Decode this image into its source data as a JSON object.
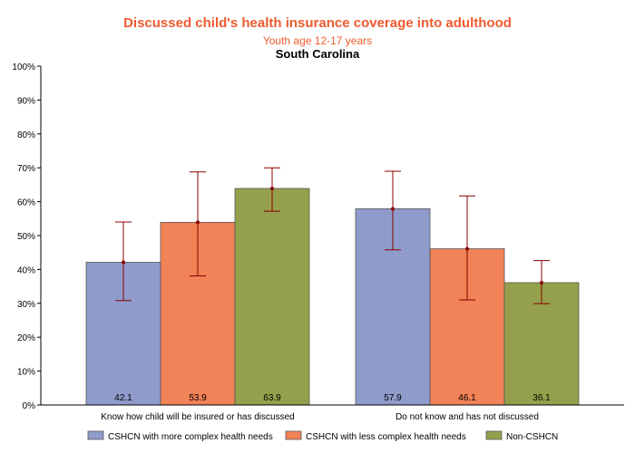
{
  "chart_data": {
    "type": "bar",
    "title": "Discussed child's health insurance coverage into adulthood",
    "subtitle": "Youth age 12-17 years",
    "subtitle2": "South Carolina",
    "categories": [
      "Know how child will be insured or has discussed",
      "Do not know and has not discussed"
    ],
    "series": [
      {
        "name": "CSHCN with more complex health needs",
        "color": "#8f9bcb",
        "values": [
          42.1,
          57.9
        ],
        "ci_low": [
          30.8,
          45.8
        ],
        "ci_high": [
          54.0,
          69.0
        ],
        "labels": [
          "42.1",
          "57.9"
        ]
      },
      {
        "name": "CSHCN with less complex health needs",
        "color": "#f28257",
        "values": [
          53.9,
          46.1
        ],
        "ci_low": [
          38.1,
          31.0
        ],
        "ci_high": [
          68.8,
          61.7
        ],
        "labels": [
          "53.9",
          "46.1"
        ]
      },
      {
        "name": "Non-CSHCN",
        "color": "#94a04b",
        "values": [
          63.9,
          36.1
        ],
        "ci_low": [
          57.2,
          29.9
        ],
        "ci_high": [
          70.0,
          42.6
        ],
        "labels": [
          "63.9",
          "36.1"
        ]
      }
    ],
    "ylim": [
      0,
      100
    ],
    "yticks": [
      "0%",
      "10%",
      "20%",
      "30%",
      "40%",
      "50%",
      "60%",
      "70%",
      "80%",
      "90%",
      "100%"
    ],
    "title_color": "#ef5b2f",
    "error_bar_color": "#8b0000",
    "legend_position": "bottom"
  }
}
